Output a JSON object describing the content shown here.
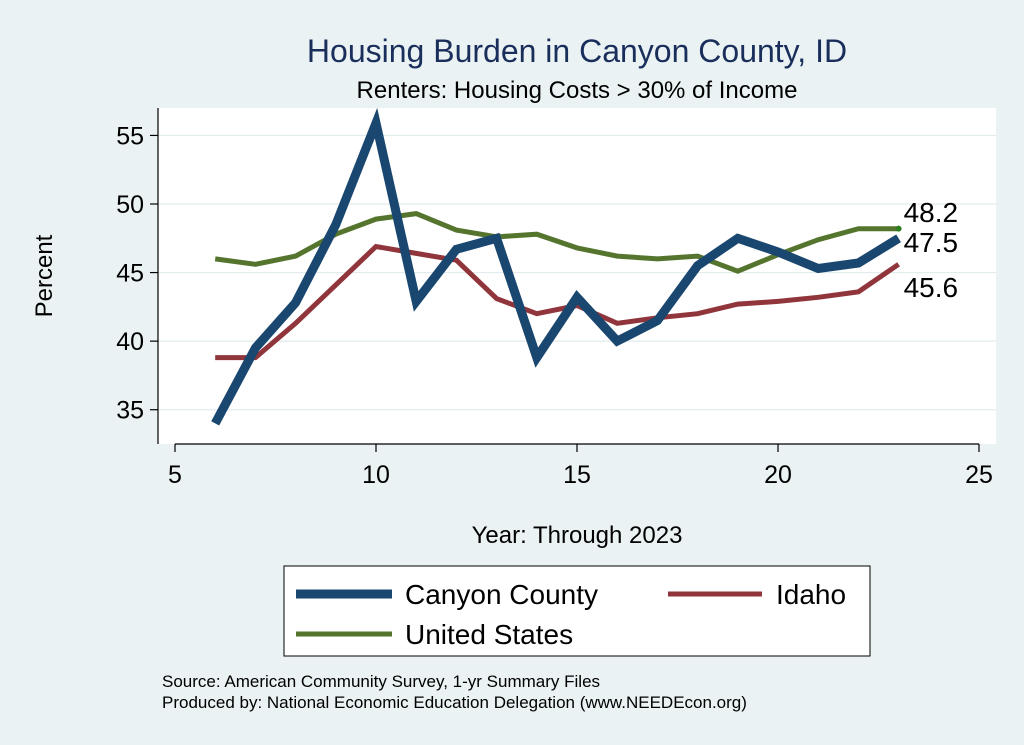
{
  "chart_data": {
    "type": "line",
    "title": "Housing Burden in Canyon County, ID",
    "subtitle": "Renters: Housing Costs > 30% of Income",
    "xlabel": "Year: Through 2023",
    "ylabel": "Percent",
    "xlim": [
      5,
      25
    ],
    "ylim": [
      32.5,
      57
    ],
    "xticks": [
      "5",
      "10",
      "15",
      "20",
      "25"
    ],
    "yticks": [
      "35",
      "40",
      "45",
      "50",
      "55"
    ],
    "grid": true,
    "legend_position": "bottom",
    "series": [
      {
        "name": "Canyon County",
        "color": "#1a476f",
        "x": [
          6,
          7,
          8,
          9,
          10,
          11,
          12,
          13,
          14,
          15,
          16,
          17,
          18,
          19,
          20,
          21,
          22,
          23
        ],
        "y": [
          34.0,
          39.5,
          42.8,
          48.5,
          55.9,
          42.9,
          46.7,
          47.5,
          38.8,
          43.2,
          40.0,
          41.5,
          45.5,
          47.5,
          46.5,
          45.3,
          45.7,
          47.5
        ],
        "end_label": "47.5"
      },
      {
        "name": "Idaho",
        "color": "#90353b",
        "x": [
          6,
          7,
          8,
          9,
          10,
          11,
          12,
          13,
          14,
          15,
          16,
          17,
          18,
          19,
          20,
          21,
          22,
          23
        ],
        "y": [
          38.8,
          38.8,
          41.3,
          44.1,
          46.9,
          46.4,
          45.9,
          43.1,
          42.0,
          42.6,
          41.3,
          41.7,
          42.0,
          42.7,
          42.9,
          43.2,
          43.6,
          45.6
        ],
        "end_label": "45.6"
      },
      {
        "name": "United States",
        "color": "#55752f",
        "x": [
          6,
          7,
          8,
          9,
          10,
          11,
          12,
          13,
          14,
          15,
          16,
          17,
          18,
          19,
          20,
          21,
          22,
          23
        ],
        "y": [
          46.0,
          45.6,
          46.2,
          47.8,
          48.9,
          49.3,
          48.1,
          47.6,
          47.8,
          46.8,
          46.2,
          46.0,
          46.2,
          45.1,
          46.3,
          47.4,
          48.2,
          48.2
        ],
        "end_label": "48.2"
      }
    ],
    "notes": [
      "Source: American Community Survey, 1-yr Summary Files",
      "Produced by: National Economic Education Delegation (www.NEEDEcon.org)"
    ]
  }
}
